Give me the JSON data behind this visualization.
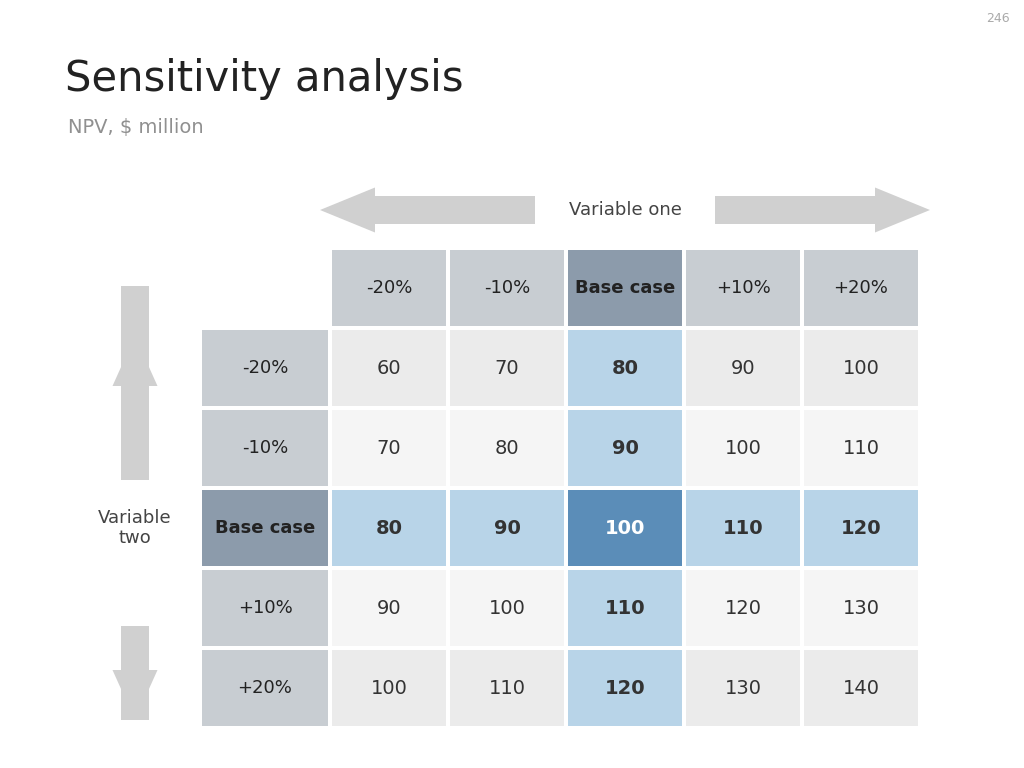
{
  "title": "Sensitivity analysis",
  "subtitle": "NPV, $ million",
  "page_number": "246",
  "col_headers": [
    "-20%",
    "-10%",
    "Base case",
    "+10%",
    "+20%"
  ],
  "row_headers": [
    "-20%",
    "-10%",
    "Base case",
    "+10%",
    "+20%"
  ],
  "values": [
    [
      60,
      70,
      80,
      90,
      100
    ],
    [
      70,
      80,
      90,
      100,
      110
    ],
    [
      80,
      90,
      100,
      110,
      120
    ],
    [
      90,
      100,
      110,
      120,
      130
    ],
    [
      100,
      110,
      120,
      130,
      140
    ]
  ],
  "var_one_label": "Variable one",
  "var_two_label": "Variable\ntwo",
  "bg_color": "#ffffff",
  "header_base_bg": "#8c9bab",
  "header_normal_bg": "#c8cdd2",
  "cell_row0_bg": "#ebebeb",
  "cell_row1_bg": "#f5f5f5",
  "cell_base_col_bg": "#b8d4e8",
  "cell_base_row_bg": "#b8d4e8",
  "cell_base_both_bg": "#5b8db8",
  "cell_base_both_text": "#ffffff",
  "text_dark": "#333333",
  "text_gray": "#888888",
  "arrow_color": "#d0d0d0"
}
